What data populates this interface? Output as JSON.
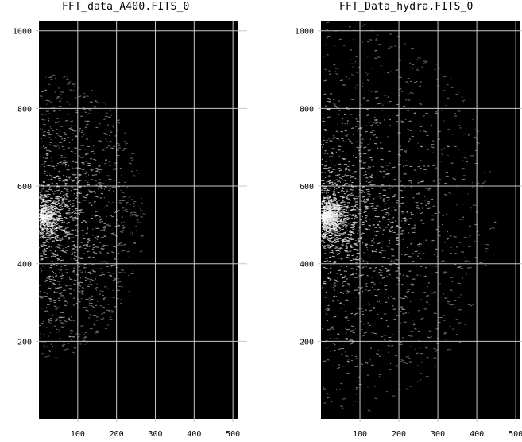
{
  "panels": [
    {
      "id": "left",
      "title": "FFT_data_A400.FITS_0",
      "xticks": [
        "100",
        "200",
        "300",
        "400",
        "500"
      ],
      "yticks": [
        "200",
        "400",
        "600",
        "800",
        "1000"
      ]
    },
    {
      "id": "right",
      "title": "FFT_Data_hydra.FITS_0",
      "xticks": [
        "100",
        "200",
        "300",
        "400",
        "500"
      ],
      "yticks": [
        "200",
        "400",
        "600",
        "800",
        "1000"
      ]
    }
  ],
  "colors": {
    "background": "#000000",
    "grid": "#c8c8c8",
    "speckle": "#d8d8d8"
  }
}
